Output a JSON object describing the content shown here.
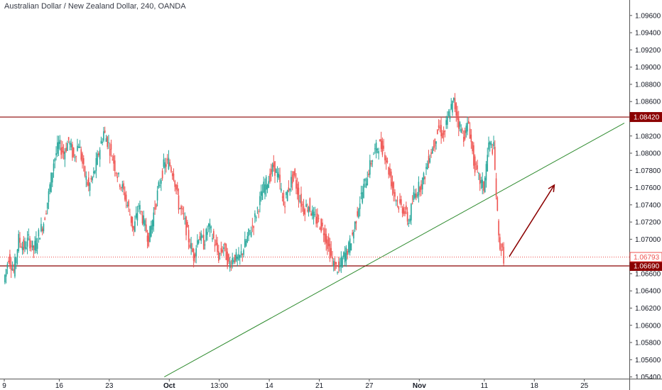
{
  "header": {
    "title": "Australian Dollar / New Zealand Dollar, 240, OANDA"
  },
  "colors": {
    "up": "#26a69a",
    "down": "#ef5350",
    "resistance": "#8b0000",
    "trendline": "#2e8b2e",
    "arrow": "#8b0000",
    "axis_text": "#131722",
    "dotted": "#ef5350"
  },
  "chart_data": {
    "type": "candlestick",
    "title": "Australian Dollar / New Zealand Dollar, 240, OANDA",
    "xlabel": "",
    "ylabel": "",
    "ylim": [
      1.0538,
      1.0978
    ],
    "grid": false,
    "y_ticks": [
      "1.09600",
      "1.09400",
      "1.09200",
      "1.09000",
      "1.08800",
      "1.08600",
      "1.08400",
      "1.08200",
      "1.08000",
      "1.07800",
      "1.07600",
      "1.07400",
      "1.07200",
      "1.07000",
      "1.06800",
      "1.06600",
      "1.06400",
      "1.06200",
      "1.06000",
      "1.05800",
      "1.05600",
      "1.05400"
    ],
    "x_ticks": [
      {
        "label": "9",
        "x": 0.0,
        "bold": false
      },
      {
        "label": "16",
        "x": 11.0,
        "bold": false
      },
      {
        "label": "23",
        "x": 21.0,
        "bold": false
      },
      {
        "label": "Oct",
        "x": 33.0,
        "bold": true
      },
      {
        "label": "13:00",
        "x": 43.0,
        "bold": false
      },
      {
        "label": "14",
        "x": 53.0,
        "bold": false
      },
      {
        "label": "21",
        "x": 63.0,
        "bold": false
      },
      {
        "label": "27",
        "x": 73.0,
        "bold": false
      },
      {
        "label": "Nov",
        "x": 83.0,
        "bold": true
      },
      {
        "label": "11",
        "x": 96.0,
        "bold": false
      },
      {
        "label": "18",
        "x": 106.0,
        "bold": false
      },
      {
        "label": "25",
        "x": 116.0,
        "bold": false
      }
    ],
    "levels": [
      {
        "name": "resistance",
        "value": 1.0842,
        "label": "1.08420",
        "style": "solid"
      },
      {
        "name": "support",
        "value": 1.0669,
        "label": "1.06690",
        "style": "solid"
      },
      {
        "name": "last-price",
        "value": 1.06793,
        "label": "1.06793",
        "style": "dotted"
      }
    ],
    "trendline": {
      "x1": 32.0,
      "y1": 1.054,
      "x2": 124.0,
      "y2": 1.0835
    },
    "projection_arrow": {
      "x1": 101.0,
      "y1": 1.068,
      "x2": 110.0,
      "y2": 1.0763
    },
    "series": [
      {
        "points": [
          [
            0,
            1.065
          ],
          [
            1,
            1.068
          ],
          [
            2,
            1.0662
          ],
          [
            3,
            1.07
          ],
          [
            4,
            1.069
          ],
          [
            5,
            1.07
          ],
          [
            6,
            1.0688
          ],
          [
            7,
            1.0705
          ],
          [
            8,
            1.072
          ],
          [
            9,
            1.0752
          ],
          [
            10,
            1.079
          ],
          [
            11,
            1.081
          ],
          [
            12,
            1.08
          ],
          [
            13,
            1.0815
          ],
          [
            14,
            1.0795
          ],
          [
            15,
            1.0812
          ],
          [
            16,
            1.078
          ],
          [
            17,
            1.076
          ],
          [
            18,
            1.0775
          ],
          [
            19,
            1.08
          ],
          [
            20,
            1.0825
          ],
          [
            21,
            1.081
          ],
          [
            22,
            1.079
          ],
          [
            23,
            1.077
          ],
          [
            24,
            1.0755
          ],
          [
            25,
            1.0735
          ],
          [
            26,
            1.071
          ],
          [
            27,
            1.074
          ],
          [
            28,
            1.072
          ],
          [
            29,
            1.07
          ],
          [
            30,
            1.073
          ],
          [
            31,
            1.076
          ],
          [
            32,
            1.0785
          ],
          [
            33,
            1.079
          ],
          [
            34,
            1.0775
          ],
          [
            35,
            1.074
          ],
          [
            36,
            1.0725
          ],
          [
            37,
            1.07
          ],
          [
            38,
            1.068
          ],
          [
            39,
            1.0705
          ],
          [
            40,
            1.0695
          ],
          [
            41,
            1.0715
          ],
          [
            42,
            1.07
          ],
          [
            43,
            1.068
          ],
          [
            44,
            1.0692
          ],
          [
            45,
            1.067
          ],
          [
            46,
            1.068
          ],
          [
            47,
            1.0675
          ],
          [
            48,
            1.069
          ],
          [
            49,
            1.0705
          ],
          [
            50,
            1.072
          ],
          [
            51,
            1.074
          ],
          [
            52,
            1.076
          ],
          [
            53,
            1.077
          ],
          [
            54,
            1.0785
          ],
          [
            55,
            1.077
          ],
          [
            56,
            1.074
          ],
          [
            57,
            1.076
          ],
          [
            58,
            1.0775
          ],
          [
            59,
            1.075
          ],
          [
            60,
            1.0735
          ],
          [
            61,
            1.074
          ],
          [
            62,
            1.0725
          ],
          [
            63,
            1.072
          ],
          [
            64,
            1.071
          ],
          [
            65,
            1.069
          ],
          [
            66,
            1.067
          ],
          [
            67,
            1.0665
          ],
          [
            68,
            1.068
          ],
          [
            69,
            1.069
          ],
          [
            70,
            1.071
          ],
          [
            71,
            1.074
          ],
          [
            72,
            1.076
          ],
          [
            73,
            1.078
          ],
          [
            74,
            1.08
          ],
          [
            75,
            1.081
          ],
          [
            76,
            1.0805
          ],
          [
            77,
            1.078
          ],
          [
            78,
            1.0755
          ],
          [
            79,
            1.074
          ],
          [
            80,
            1.0735
          ],
          [
            81,
            1.072
          ],
          [
            82,
            1.075
          ],
          [
            83,
            1.076
          ],
          [
            84,
            1.077
          ],
          [
            85,
            1.0795
          ],
          [
            86,
            1.081
          ],
          [
            87,
            1.083
          ],
          [
            88,
            1.082
          ],
          [
            89,
            1.0845
          ],
          [
            90,
            1.086
          ],
          [
            91,
            1.0835
          ],
          [
            92,
            1.082
          ],
          [
            93,
            1.0835
          ],
          [
            94,
            1.079
          ],
          [
            95,
            1.077
          ],
          [
            96,
            1.076
          ],
          [
            97,
            1.081
          ],
          [
            98,
            1.0805
          ],
          [
            99,
            1.07
          ],
          [
            100,
            1.0679
          ]
        ]
      }
    ]
  }
}
